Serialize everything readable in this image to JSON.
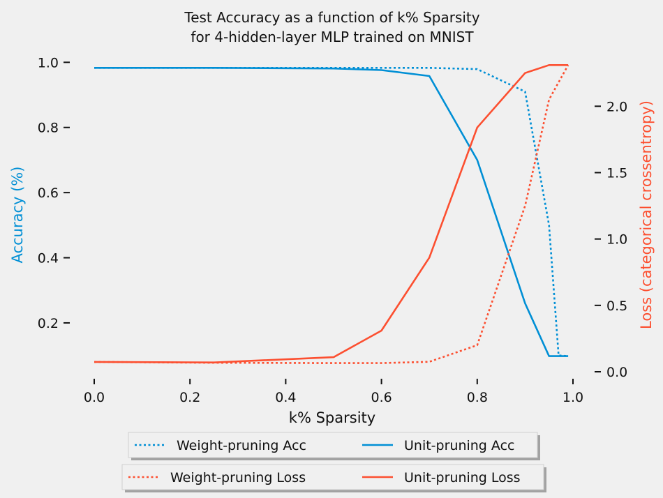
{
  "chart_data": {
    "type": "line",
    "title_lines": [
      "Test Accuracy as a function of k% Sparsity",
      "for 4-hidden-layer MLP trained on MNIST"
    ],
    "xlabel": "k% Sparsity",
    "ylabel_left": "Accuracy (%)",
    "ylabel_right": "Loss (categorical crossentropy)",
    "xlim": [
      0.0,
      1.0
    ],
    "ylim_left": [
      0.05,
      1.02
    ],
    "ylim_right": [
      0.0,
      2.38
    ],
    "x_ticks": [
      "0.0",
      "0.2",
      "0.4",
      "0.6",
      "0.8",
      "1.0"
    ],
    "y_ticks_left": [
      "0.2",
      "0.4",
      "0.6",
      "0.8",
      "1.0"
    ],
    "y_ticks_right": [
      "0.0",
      "0.5",
      "1.0",
      "1.5",
      "2.0"
    ],
    "grid": false,
    "colors": {
      "acc": "#008fd5",
      "loss": "#fc4f30"
    },
    "series": [
      {
        "name": "Weight-pruning Acc",
        "axis": "left",
        "style": "dotted",
        "color": "#008fd5",
        "x": [
          0.0,
          0.25,
          0.5,
          0.6,
          0.7,
          0.8,
          0.9,
          0.95,
          0.97,
          0.99
        ],
        "y": [
          0.983,
          0.983,
          0.983,
          0.983,
          0.983,
          0.979,
          0.91,
          0.5,
          0.1,
          0.098
        ]
      },
      {
        "name": "Unit-pruning Acc",
        "axis": "left",
        "style": "solid",
        "color": "#008fd5",
        "x": [
          0.0,
          0.25,
          0.5,
          0.6,
          0.7,
          0.8,
          0.9,
          0.95,
          0.99
        ],
        "y": [
          0.983,
          0.983,
          0.981,
          0.976,
          0.958,
          0.7,
          0.26,
          0.098,
          0.098
        ]
      },
      {
        "name": "Weight-pruning Loss",
        "axis": "right",
        "style": "dotted",
        "color": "#fc4f30",
        "x": [
          0.0,
          0.25,
          0.5,
          0.6,
          0.7,
          0.8,
          0.9,
          0.95,
          0.99
        ],
        "y": [
          0.074,
          0.068,
          0.065,
          0.065,
          0.075,
          0.2,
          1.25,
          2.05,
          2.31
        ]
      },
      {
        "name": "Unit-pruning Loss",
        "axis": "right",
        "style": "solid",
        "color": "#fc4f30",
        "x": [
          0.0,
          0.25,
          0.5,
          0.6,
          0.7,
          0.8,
          0.9,
          0.95,
          0.99
        ],
        "y": [
          0.074,
          0.07,
          0.11,
          0.31,
          0.86,
          1.84,
          2.25,
          2.31,
          2.31
        ]
      }
    ],
    "legends": [
      {
        "entries": [
          "Weight-pruning Acc",
          "Unit-pruning Acc"
        ]
      },
      {
        "entries": [
          "Weight-pruning Loss",
          "Unit-pruning Loss"
        ]
      }
    ]
  }
}
